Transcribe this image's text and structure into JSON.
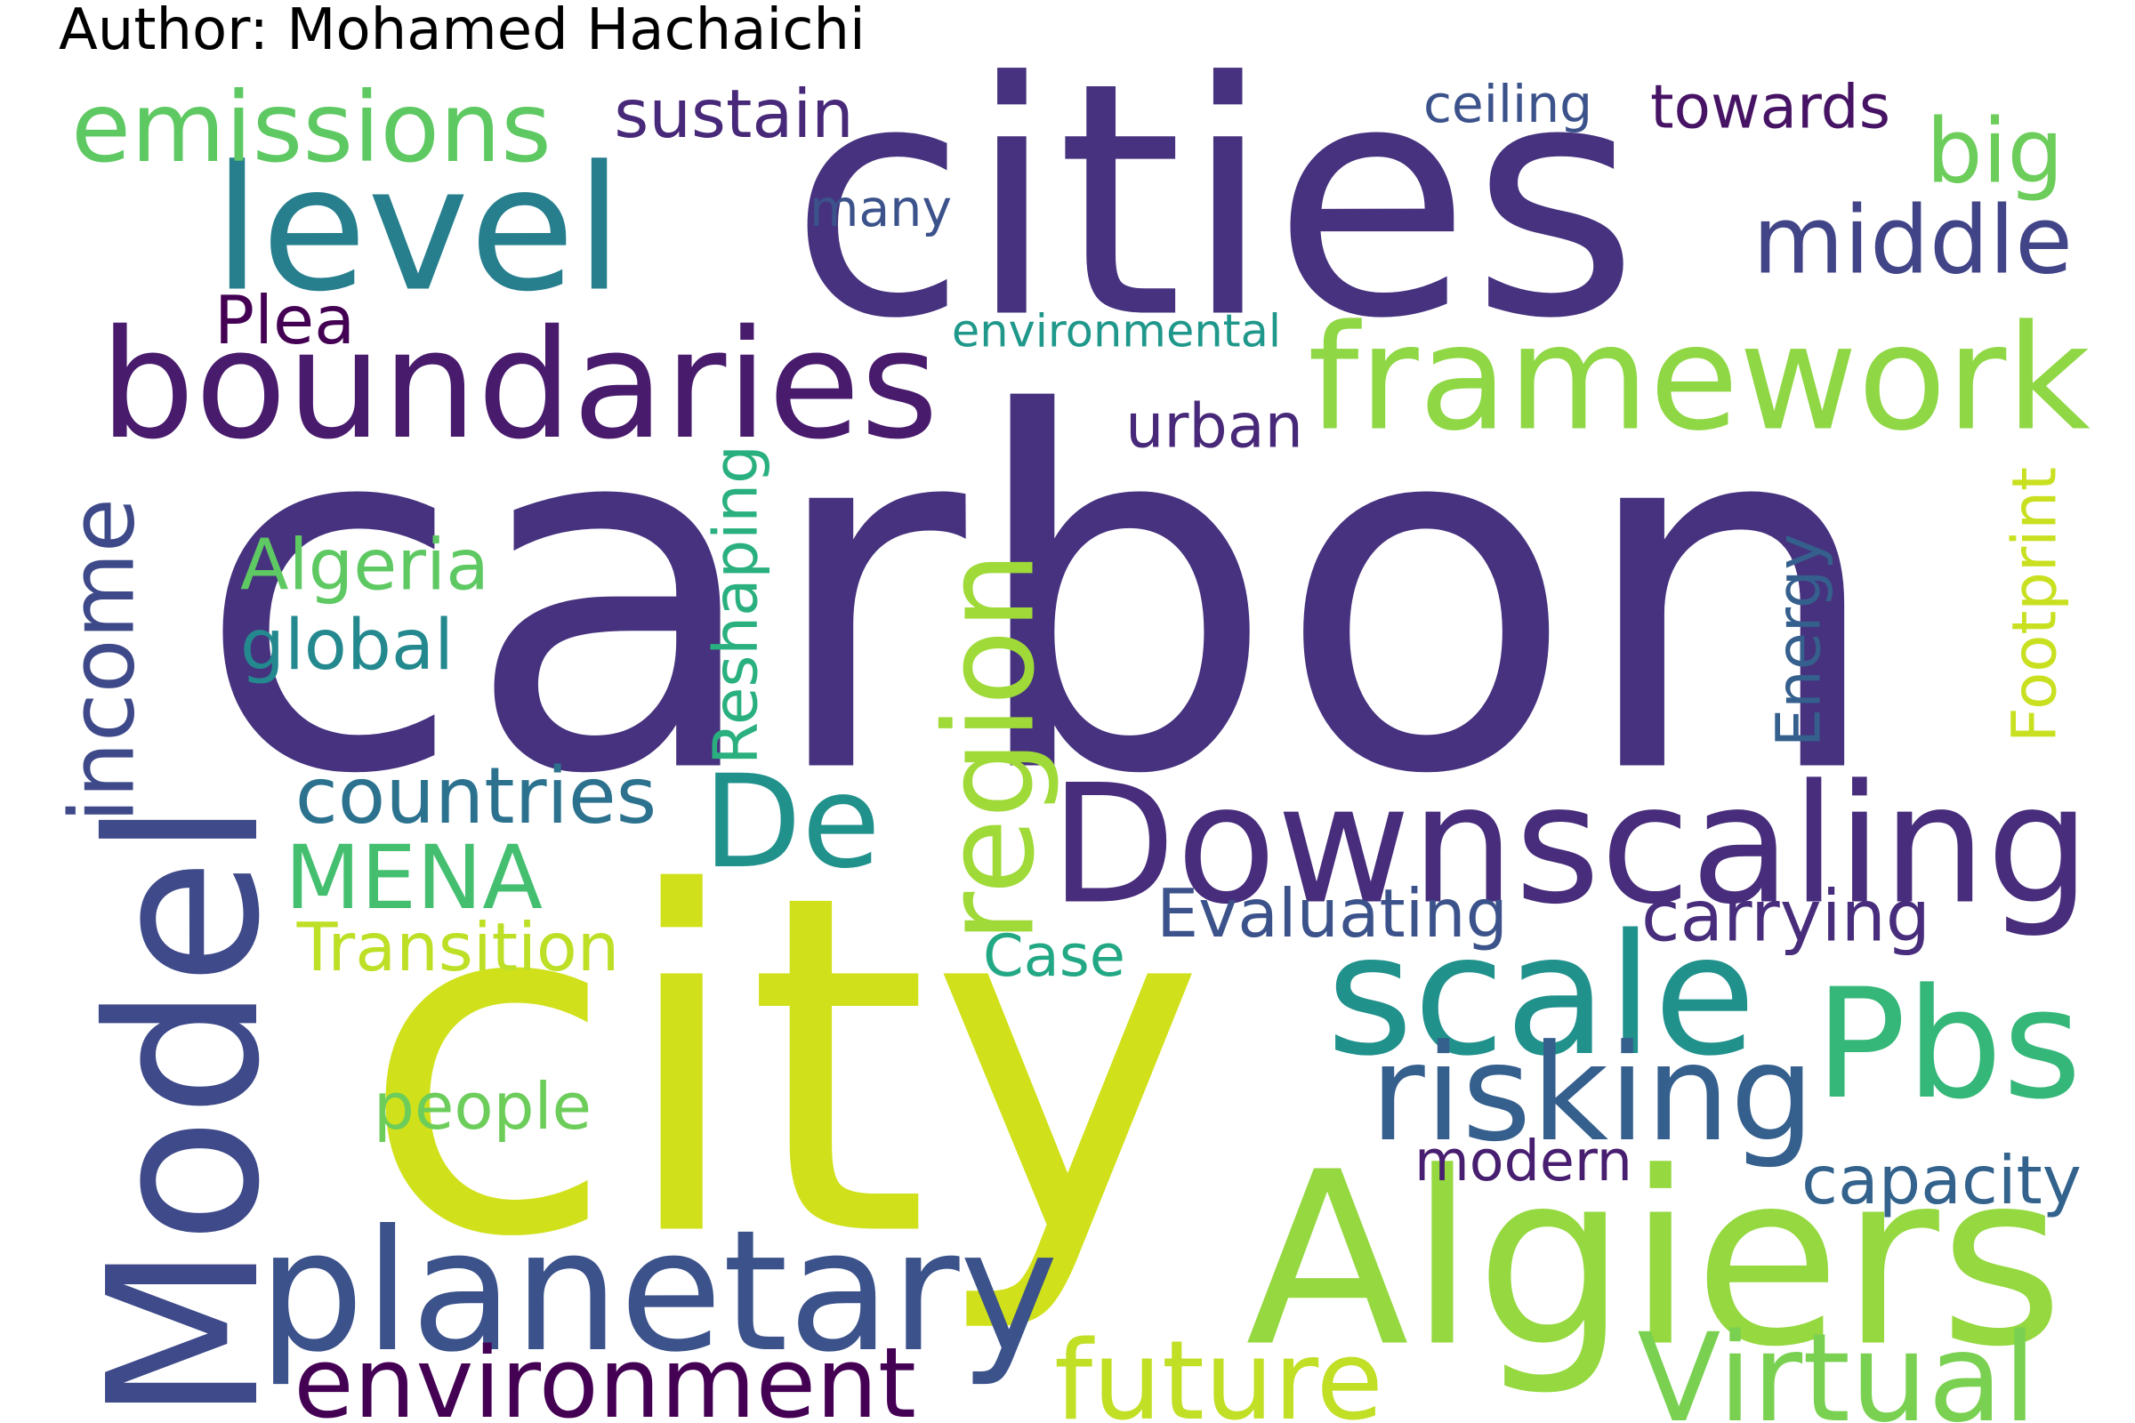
{
  "author": "Author: Mohamed Hachaichi",
  "words": [
    {
      "text": "carbon",
      "color": "#46327e"
    },
    {
      "text": "city",
      "color": "#d0e11c"
    },
    {
      "text": "cities",
      "color": "#46327e"
    },
    {
      "text": "boundaries",
      "color": "#481b6d"
    },
    {
      "text": "framework",
      "color": "#8fd744"
    },
    {
      "text": "level",
      "color": "#277f8e"
    },
    {
      "text": "emissions",
      "color": "#5ec962"
    },
    {
      "text": "Model",
      "color": "#3e4a89"
    },
    {
      "text": "Downscaling",
      "color": "#472d7b"
    },
    {
      "text": "Algiers",
      "color": "#95d840"
    },
    {
      "text": "planetary",
      "color": "#3b528b"
    },
    {
      "text": "scale",
      "color": "#21918c"
    },
    {
      "text": "Pbs",
      "color": "#35b779"
    },
    {
      "text": "De",
      "color": "#21918c"
    },
    {
      "text": "region",
      "color": "#a0da39"
    },
    {
      "text": "risking",
      "color": "#355f8d"
    },
    {
      "text": "environment",
      "color": "#440154"
    },
    {
      "text": "future",
      "color": "#c0df25"
    },
    {
      "text": "Virtual",
      "color": "#7ad151"
    },
    {
      "text": "MENA",
      "color": "#44bf70"
    },
    {
      "text": "income",
      "color": "#3e4989"
    },
    {
      "text": "countries",
      "color": "#2c728e"
    },
    {
      "text": "middle",
      "color": "#414487"
    },
    {
      "text": "big",
      "color": "#6ccd5a"
    },
    {
      "text": "sustain",
      "color": "#482878"
    },
    {
      "text": "towards",
      "color": "#471365"
    },
    {
      "text": "ceiling",
      "color": "#3b528b"
    },
    {
      "text": "many",
      "color": "#3b528b"
    },
    {
      "text": "Plea",
      "color": "#440154"
    },
    {
      "text": "environmental",
      "color": "#1f988b"
    },
    {
      "text": "urban",
      "color": "#482878"
    },
    {
      "text": "Algeria",
      "color": "#5ec962"
    },
    {
      "text": "global",
      "color": "#23898e"
    },
    {
      "text": "Reshaping",
      "color": "#2ab07f"
    },
    {
      "text": "Energy",
      "color": "#355f8d"
    },
    {
      "text": "Footprint",
      "color": "#c8e020"
    },
    {
      "text": "Evaluating",
      "color": "#3b528b"
    },
    {
      "text": "carrying",
      "color": "#472d7b"
    },
    {
      "text": "Case",
      "color": "#22a884"
    },
    {
      "text": "Transition",
      "color": "#bddf26"
    },
    {
      "text": "people",
      "color": "#6ccd5a"
    },
    {
      "text": "modern",
      "color": "#481f70"
    },
    {
      "text": "capacity",
      "color": "#33638d"
    }
  ]
}
